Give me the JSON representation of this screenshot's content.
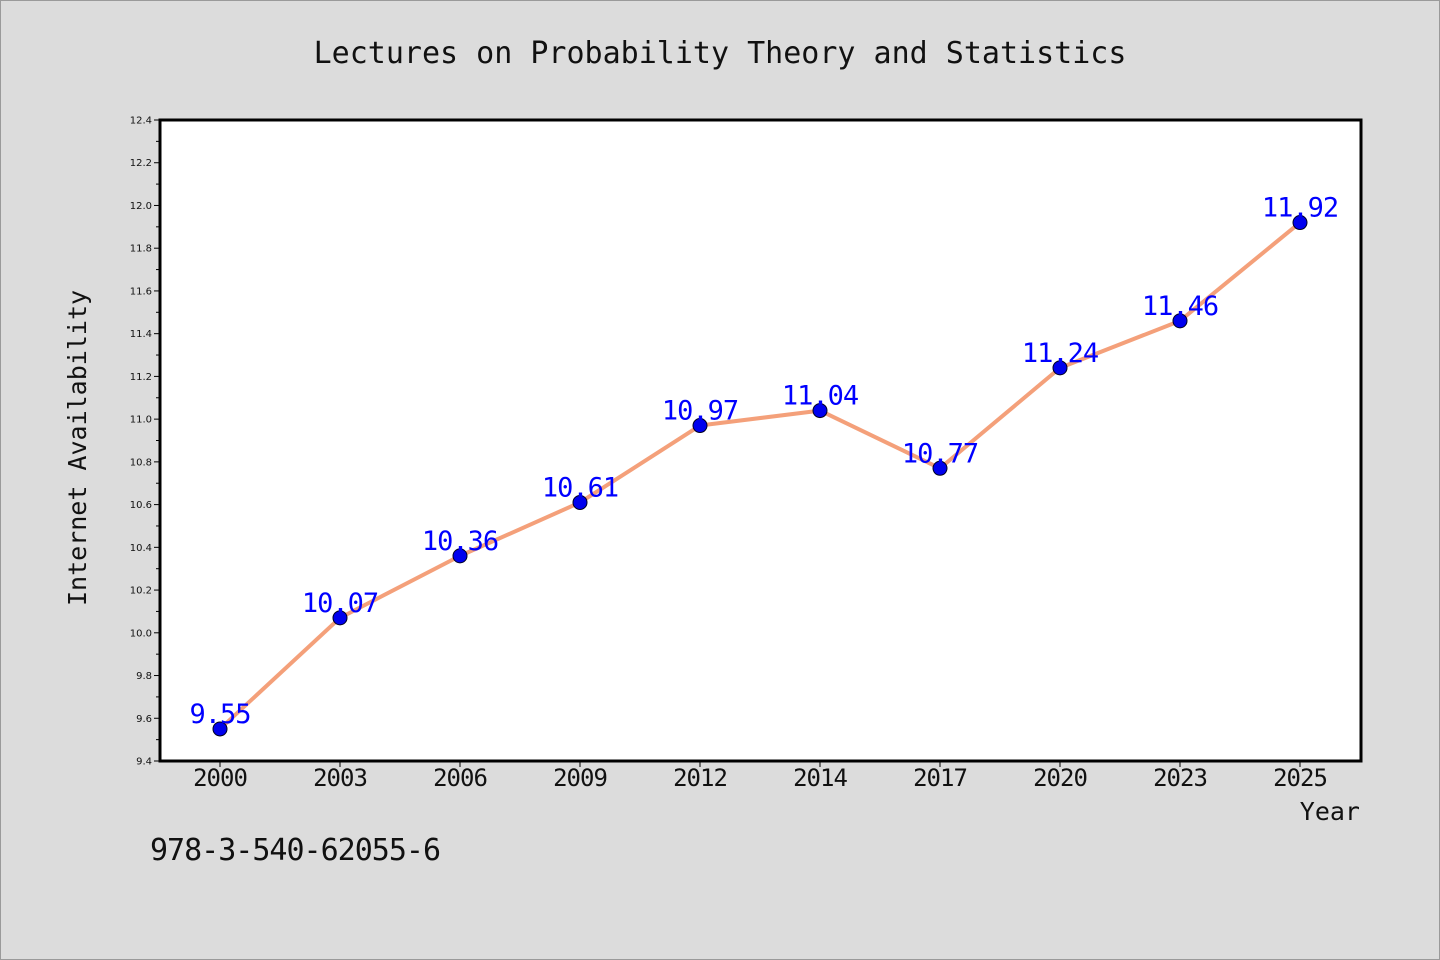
{
  "chart_data": {
    "type": "line",
    "title": "Lectures on Probability Theory and Statistics",
    "xlabel": "Year",
    "ylabel": "Internet Availability",
    "categories": [
      "2000",
      "2003",
      "2006",
      "2009",
      "2012",
      "2014",
      "2017",
      "2020",
      "2023",
      "2025"
    ],
    "series": [
      {
        "values": [
          9.55,
          10.07,
          10.36,
          10.61,
          10.97,
          11.04,
          10.77,
          11.24,
          11.46,
          11.92
        ]
      }
    ],
    "data_labels": [
      "9.55",
      "10.07",
      "10.36",
      "10.61",
      "10.97",
      "11.04",
      "10.77",
      "11.24",
      "11.46",
      "11.92"
    ],
    "ylim": [
      9.4,
      12.4
    ],
    "yticks": [
      "9.4",
      "9.6",
      "9.8",
      "10.0",
      "10.2",
      "10.4",
      "10.6",
      "10.8",
      "11.0",
      "11.2",
      "11.4",
      "11.6",
      "11.8",
      "12.0",
      "12.2",
      "12.4"
    ],
    "grid": false,
    "colors": {
      "line": "#f4a07a",
      "marker": "#0000ee",
      "label": "#0000ff"
    }
  },
  "footer": {
    "isbn": "978-3-540-62055-6"
  }
}
